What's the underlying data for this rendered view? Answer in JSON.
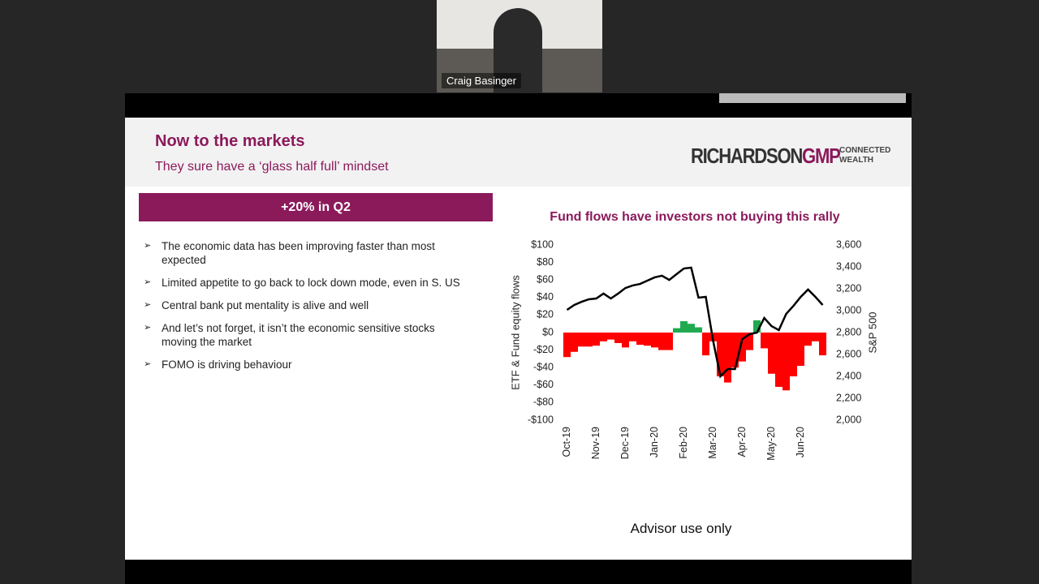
{
  "call": {
    "participant": "Craig Basinger"
  },
  "slide": {
    "title": "Now to the markets",
    "subtitle": "They sure have a ‘glass half full’ mindset",
    "logo": {
      "main": "RICHARDSON",
      "accent": "GMP",
      "tag_line1": "CONNECTED",
      "tag_line2": "WEALTH"
    },
    "banner": "+20% in Q2",
    "bullets": [
      "The economic data has been improving faster than most expected",
      "Limited appetite to go back to lock down mode, even in S. US",
      "Central bank put mentality is alive and well",
      "And let’s not forget, it isn’t the economic sensitive stocks moving the market",
      "FOMO is driving behaviour"
    ],
    "footer": "Advisor use only"
  },
  "chart_data": {
    "type": "bar-line",
    "title": "Fund flows have investors not buying this rally",
    "y_label": "ETF & Fund equity flows",
    "y2_label": "S&P 500",
    "categories": [
      "Oct-19",
      null,
      null,
      null,
      "Nov-19",
      null,
      null,
      null,
      "Dec-19",
      null,
      null,
      null,
      "Jan-20",
      null,
      null,
      null,
      "Feb-20",
      null,
      null,
      null,
      "Mar-20",
      null,
      null,
      null,
      "Apr-20",
      null,
      null,
      null,
      "May-20",
      null,
      null,
      null,
      "Jun-20",
      null,
      null,
      null
    ],
    "positive_color": "#1faa50",
    "negative_color": "#ff0000",
    "series": [
      {
        "type": "bar",
        "values": [
          -28,
          -22,
          -16,
          -16,
          -15,
          -10,
          -8,
          -12,
          -17,
          -10,
          -14,
          -15,
          -17,
          -20,
          -20,
          5,
          13,
          10,
          6,
          -26,
          -10,
          -50,
          -57,
          -40,
          -33,
          -20,
          14,
          -18,
          -47,
          -62,
          -66,
          -50,
          -38,
          -15,
          -10,
          -26
        ]
      },
      {
        "type": "line",
        "axis": "y2",
        "color": "#000000",
        "values": [
          3007,
          3052,
          3081,
          3104,
          3111,
          3156,
          3111,
          3156,
          3207,
          3230,
          3244,
          3274,
          3304,
          3319,
          3281,
          3333,
          3385,
          3393,
          3119,
          3126,
          2726,
          2400,
          2467,
          2467,
          2741,
          2785,
          2800,
          2933,
          2859,
          2822,
          2970,
          3044,
          3126,
          3193,
          3126,
          3052
        ]
      }
    ],
    "ylim": [
      -100,
      100
    ],
    "yticks": [
      {
        "value": -100,
        "label": "-$100"
      },
      {
        "value": -80,
        "label": "-$80"
      },
      {
        "value": -60,
        "label": "-$60"
      },
      {
        "value": -40,
        "label": "-$40"
      },
      {
        "value": -20,
        "label": "-$20"
      },
      {
        "value": 0,
        "label": "$0"
      },
      {
        "value": 20,
        "label": "$20"
      },
      {
        "value": 40,
        "label": "$40"
      },
      {
        "value": 60,
        "label": "$60"
      },
      {
        "value": 80,
        "label": "$80"
      },
      {
        "value": 100,
        "label": "$100"
      }
    ],
    "y2lim": [
      2000,
      3600
    ],
    "y2ticks": [
      {
        "value": 2000,
        "label": "2,000"
      },
      {
        "value": 2200,
        "label": "2,200"
      },
      {
        "value": 2400,
        "label": "2,400"
      },
      {
        "value": 2600,
        "label": "2,600"
      },
      {
        "value": 2800,
        "label": "2,800"
      },
      {
        "value": 3000,
        "label": "3,000"
      },
      {
        "value": 3200,
        "label": "3,200"
      },
      {
        "value": 3400,
        "label": "3,400"
      },
      {
        "value": 3600,
        "label": "3,600"
      }
    ]
  }
}
